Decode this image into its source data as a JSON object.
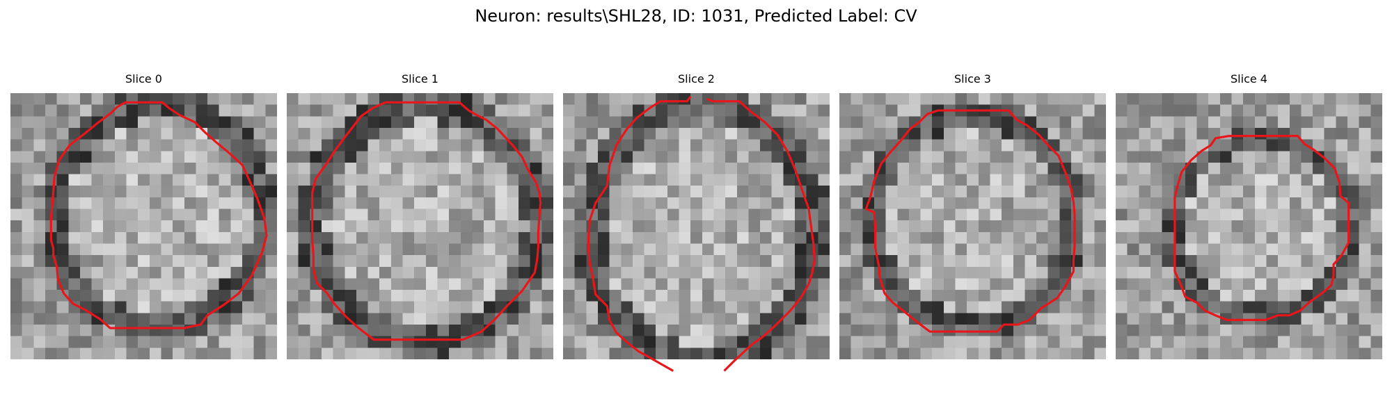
{
  "figure": {
    "title": "Neuron: results\\SHL28, ID: 1031, Predicted Label: CV",
    "contour_color": "#e8161b",
    "image_colormap": "grayscale",
    "slices": [
      {
        "label": "Slice 0"
      },
      {
        "label": "Slice 1"
      },
      {
        "label": "Slice 2"
      },
      {
        "label": "Slice 3"
      },
      {
        "label": "Slice 4"
      }
    ]
  }
}
